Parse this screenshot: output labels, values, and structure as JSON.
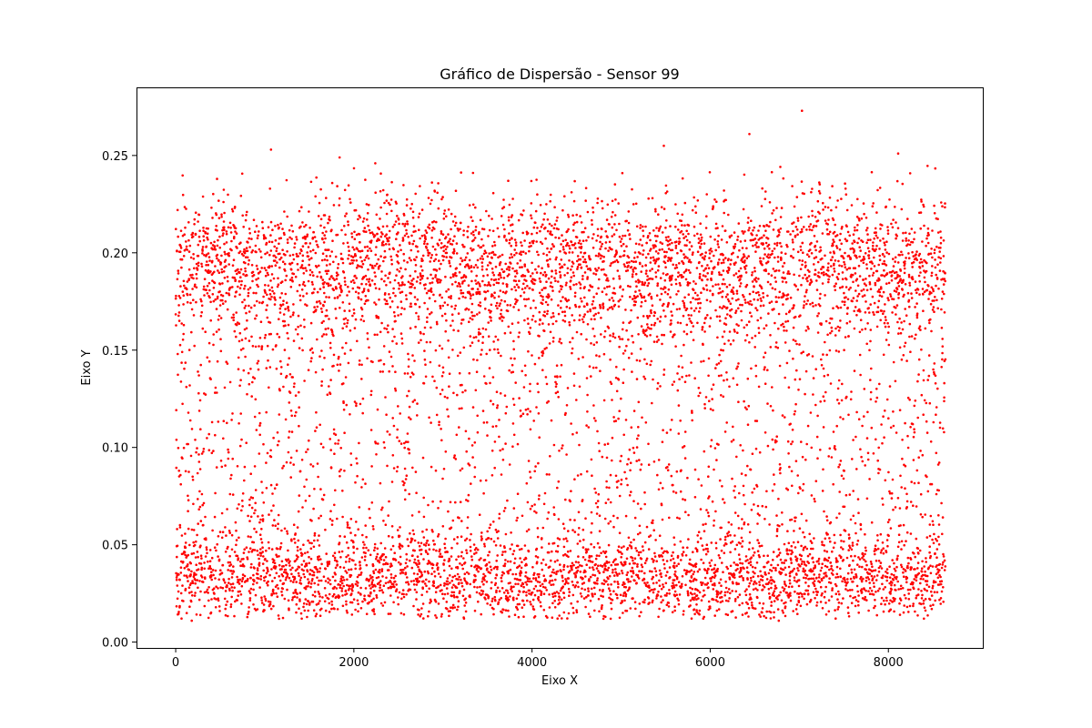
{
  "chart_data": {
    "type": "scatter",
    "title": "Gráfico de Dispersão - Sensor 99",
    "xlabel": "Eixo X",
    "ylabel": "Eixo Y",
    "xlim": [
      -440,
      9060
    ],
    "ylim": [
      -0.003,
      0.285
    ],
    "x_ticks": [
      0,
      2000,
      4000,
      6000,
      8000
    ],
    "y_ticks": [
      0.0,
      0.05,
      0.1,
      0.15,
      0.2,
      0.25
    ],
    "x_tick_labels": [
      "0",
      "2000",
      "4000",
      "6000",
      "8000"
    ],
    "y_tick_labels": [
      "0.00",
      "0.05",
      "0.10",
      "0.15",
      "0.20",
      "0.25"
    ],
    "grid": false,
    "marker_color": "#ff0000",
    "series": [
      {
        "point_count": 8640,
        "x_range": [
          0,
          8640
        ],
        "y_range": [
          0.011,
          0.273
        ],
        "notable_points": [
          {
            "x": 7030,
            "y": 0.273
          },
          {
            "x": 6440,
            "y": 0.261
          },
          {
            "x": 5480,
            "y": 0.255
          },
          {
            "x": 1070,
            "y": 0.253
          },
          {
            "x": 8110,
            "y": 0.251
          },
          {
            "x": 1840,
            "y": 0.249
          },
          {
            "x": 2240,
            "y": 0.246
          },
          {
            "x": 6770,
            "y": 0.011
          },
          {
            "x": 180,
            "y": 0.011
          },
          {
            "x": 1160,
            "y": 0.012
          }
        ]
      }
    ]
  }
}
